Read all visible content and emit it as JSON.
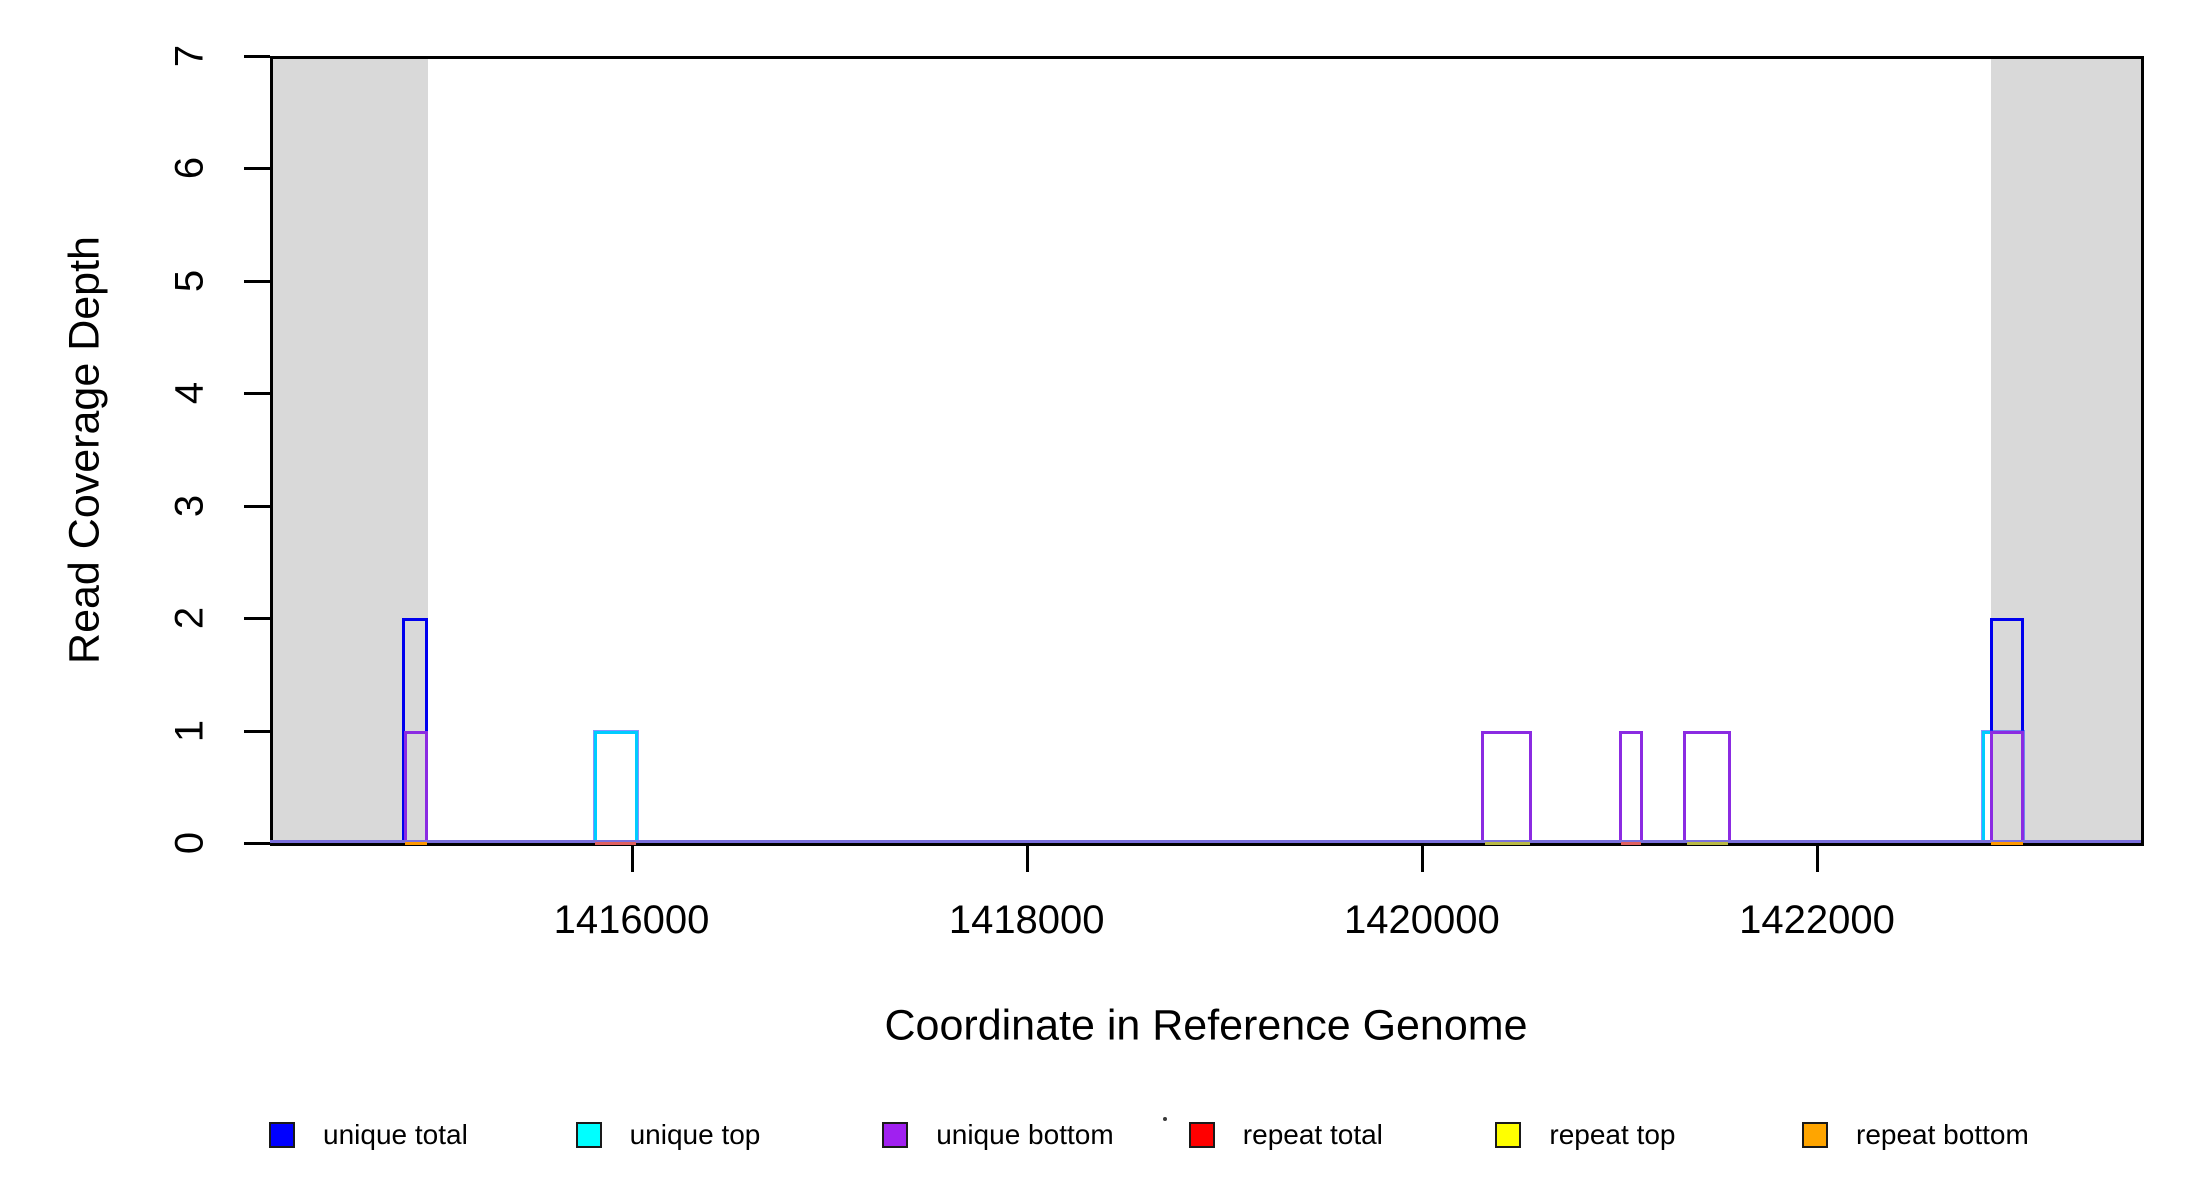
{
  "chart_data": {
    "type": "area",
    "title": "",
    "xlabel": "Coordinate in Reference Genome",
    "ylabel": "Read Coverage Depth",
    "xlim": [
      1414170,
      1423640
    ],
    "ylim": [
      0,
      7
    ],
    "x_ticks": [
      1416000,
      1418000,
      1420000,
      1422000
    ],
    "y_ticks": [
      0,
      1,
      2,
      3,
      4,
      5,
      6,
      7
    ],
    "grid": false,
    "legend_position": "bottom",
    "baseline_color": "#7a6fdc",
    "shaded_region_color": "#d9d9d9",
    "shaded_regions": [
      {
        "name": "left-flank",
        "start": 1414170,
        "end": 1414970
      },
      {
        "name": "right-flank",
        "start": 1422880,
        "end": 1423640
      }
    ],
    "series": [
      {
        "name": "unique total",
        "color": "#0000ee",
        "legend_color": "#0000ff",
        "halo": false,
        "segments": [
          {
            "start": 1414840,
            "end": 1414970,
            "depth": 2
          },
          {
            "start": 1422875,
            "end": 1423050,
            "depth": 2
          }
        ],
        "zero_marks": []
      },
      {
        "name": "unique top",
        "color": "#00ccff",
        "legend_color": "#00ffff",
        "halo": true,
        "segments": [
          {
            "start": 1415810,
            "end": 1416035,
            "depth": 1
          },
          {
            "start": 1422835,
            "end": 1423050,
            "depth": 1
          }
        ],
        "zero_marks": []
      },
      {
        "name": "unique bottom",
        "color": "#8b2be2",
        "legend_color": "#a020f0",
        "halo": false,
        "segments": [
          {
            "start": 1414850,
            "end": 1414970,
            "depth": 1
          },
          {
            "start": 1420300,
            "end": 1420560,
            "depth": 1
          },
          {
            "start": 1421000,
            "end": 1421120,
            "depth": 1
          },
          {
            "start": 1421320,
            "end": 1421565,
            "depth": 1
          },
          {
            "start": 1422875,
            "end": 1423050,
            "depth": 1
          }
        ],
        "zero_marks": []
      },
      {
        "name": "repeat total",
        "color": "#e06060",
        "legend_color": "#ff0000",
        "halo": false,
        "segments": [],
        "zero_marks": [
          {
            "start": 1415815,
            "end": 1416025
          },
          {
            "start": 1421010,
            "end": 1421110
          }
        ]
      },
      {
        "name": "repeat top",
        "color": "#b9b945",
        "legend_color": "#ffff00",
        "halo": false,
        "segments": [],
        "zero_marks": [
          {
            "start": 1420320,
            "end": 1420545
          },
          {
            "start": 1421340,
            "end": 1421550
          }
        ]
      },
      {
        "name": "repeat bottom",
        "color": "#ff9800",
        "legend_color": "#ffa500",
        "halo": false,
        "segments": [],
        "zero_marks": [
          {
            "start": 1414855,
            "end": 1414965
          },
          {
            "start": 1422880,
            "end": 1423045
          }
        ]
      }
    ]
  },
  "legend": {
    "items": [
      {
        "label": "unique total",
        "color": "#0000ff"
      },
      {
        "label": "unique top",
        "color": "#00ffff"
      },
      {
        "label": "unique bottom",
        "color": "#a020f0"
      },
      {
        "label": "repeat total",
        "color": "#ff0000"
      },
      {
        "label": "repeat top",
        "color": "#ffff00"
      },
      {
        "label": "repeat bottom",
        "color": "#ffa500"
      }
    ]
  }
}
